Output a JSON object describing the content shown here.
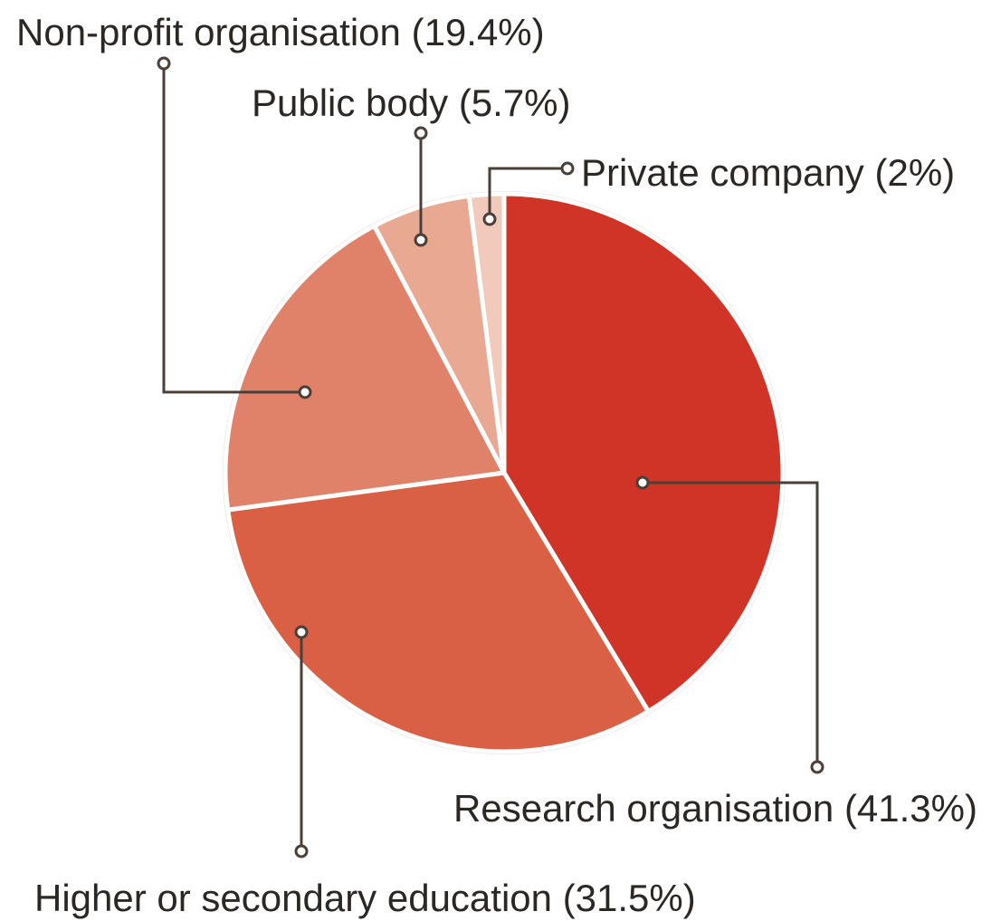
{
  "chart_data": {
    "type": "pie",
    "categories": [
      "Research organisation",
      "Higher or secondary education",
      "Non-profit organisation",
      "Public body",
      "Private company"
    ],
    "values": [
      41.3,
      31.5,
      19.4,
      5.7,
      2
    ],
    "value_labels": [
      "(41.3%)",
      "(31.5%)",
      "(19.4%)",
      "(5.7%)",
      "(2%)"
    ],
    "colors": [
      "#cf3427",
      "#d95f45",
      "#e0826a",
      "#e9a891",
      "#f2cabc"
    ]
  }
}
